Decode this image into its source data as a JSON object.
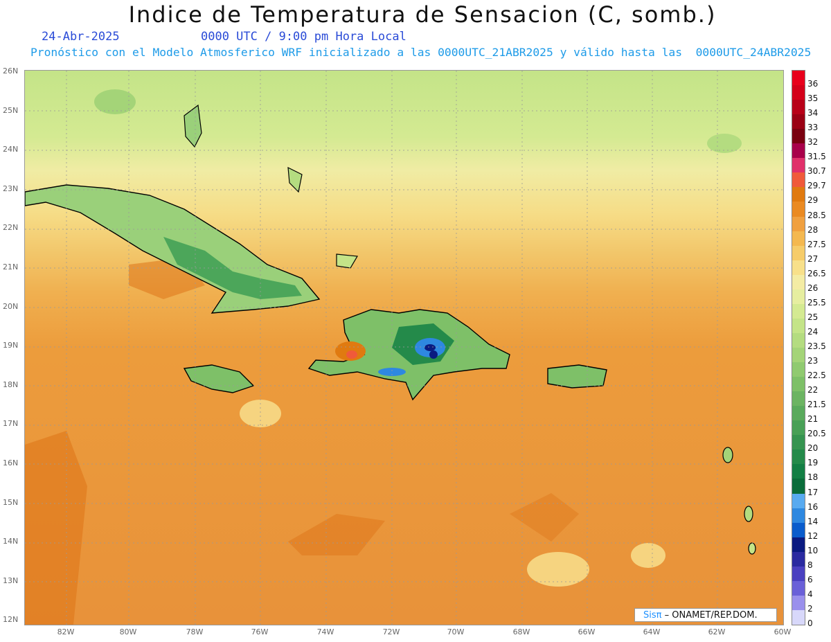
{
  "header": {
    "title": "Indice de Temperatura de Sensacion (C, somb.)",
    "date": "24-Abr-2025",
    "time": "0000 UTC / 9:00 pm Hora Local",
    "forecast": "Pronóstico con el Modelo Atmosferico WRF inicializado a las 0000UTC_21ABR2025 y válido hasta las  0000UTC_24ABR2025"
  },
  "map": {
    "lat_labels": [
      "26N",
      "25N",
      "24N",
      "23N",
      "22N",
      "21N",
      "20N",
      "19N",
      "18N",
      "17N",
      "16N",
      "15N",
      "14N",
      "13N",
      "12N"
    ],
    "lon_labels": [
      "82W",
      "80W",
      "78W",
      "76W",
      "74W",
      "72W",
      "70W",
      "68W",
      "66W",
      "64W",
      "62W",
      "60W"
    ],
    "credit_sis": "Sisπ",
    "credit_rest": " – ONAMET/REP.DOM."
  },
  "legend": {
    "labels": [
      "36",
      "35",
      "34",
      "33",
      "32",
      "31.5",
      "30.7",
      "29.7",
      "29",
      "28.5",
      "28",
      "27.5",
      "27",
      "26.5",
      "26",
      "25.5",
      "25",
      "24",
      "23.5",
      "23",
      "22.5",
      "22",
      "21.5",
      "21",
      "20.5",
      "20",
      "19",
      "18",
      "17",
      "16",
      "14",
      "12",
      "10",
      "8",
      "6",
      "4",
      "2",
      "0"
    ],
    "colors": [
      "#e8001c",
      "#d4001a",
      "#b80018",
      "#9a0014",
      "#7a0010",
      "#a8004a",
      "#e0306a",
      "#f05a3a",
      "#e07a10",
      "#ea8a22",
      "#f0a040",
      "#f4b850",
      "#f6cc6a",
      "#f8e08a",
      "#f4eca4",
      "#e6eea0",
      "#d4ea92",
      "#c4e488",
      "#b4dc80",
      "#a4d478",
      "#90ca70",
      "#7ec068",
      "#6cb462",
      "#5aaa5c",
      "#48a056",
      "#369450",
      "#248a4a",
      "#137e44",
      "#0a6c3a",
      "#58aaf0",
      "#2e88e0",
      "#0a5ccc",
      "#0a1a80",
      "#2a2aa0",
      "#4a40c0",
      "#6a60d8",
      "#9a90ec",
      "#d8d8fa"
    ]
  }
}
